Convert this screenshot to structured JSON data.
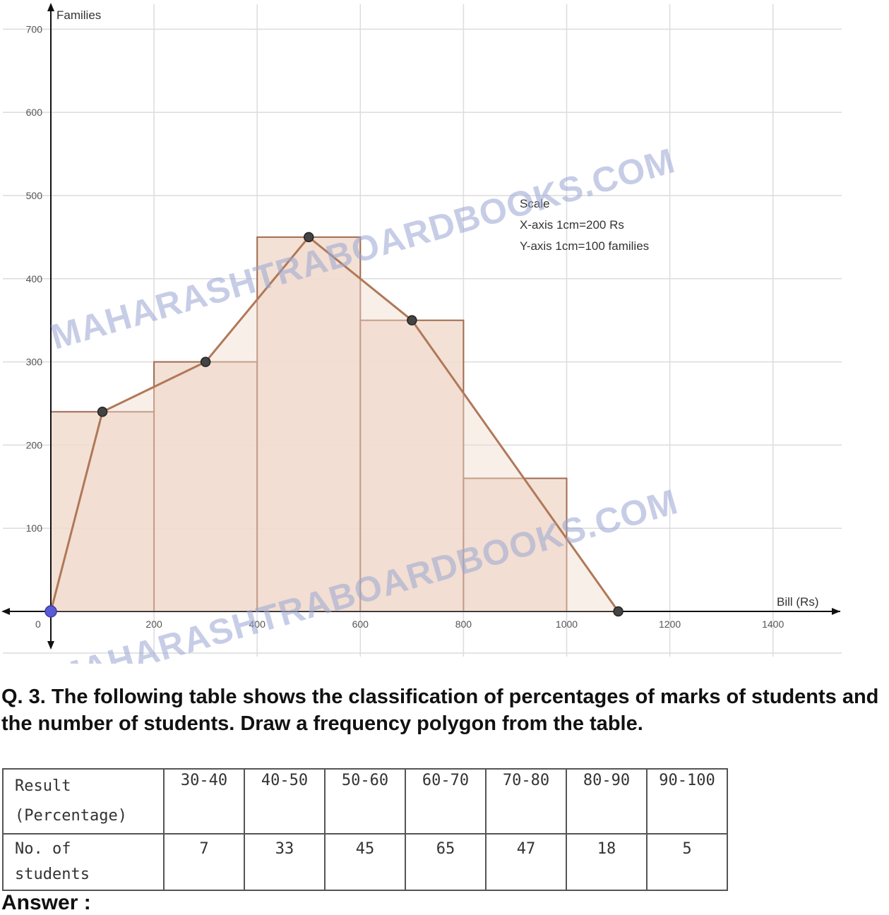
{
  "chart_data": {
    "type": "histogram_with_frequency_polygon",
    "ylabel": "Families",
    "xlabel": "Bill (Rs)",
    "xlim": [
      0,
      1500
    ],
    "ylim": [
      0,
      700
    ],
    "x_ticks": [
      0,
      200,
      400,
      600,
      800,
      1000,
      1200,
      1400
    ],
    "y_ticks": [
      100,
      200,
      300,
      400,
      500,
      600,
      700
    ],
    "grid": true,
    "bars": [
      {
        "from": 0,
        "to": 200,
        "value": 240
      },
      {
        "from": 200,
        "to": 400,
        "value": 300
      },
      {
        "from": 400,
        "to": 600,
        "value": 450
      },
      {
        "from": 600,
        "to": 800,
        "value": 350
      },
      {
        "from": 800,
        "to": 1000,
        "value": 160
      }
    ],
    "polygon": [
      {
        "x": 0,
        "y": 0
      },
      {
        "x": 100,
        "y": 240
      },
      {
        "x": 300,
        "y": 300
      },
      {
        "x": 500,
        "y": 450
      },
      {
        "x": 700,
        "y": 350
      },
      {
        "x": 1100,
        "y": 0
      }
    ],
    "scale_note": {
      "title": "Scale",
      "x_scale": "X-axis 1cm=200 Rs",
      "y_scale": "Y-axis 1cm=100 families"
    },
    "colors": {
      "bar_fill": "#f1dccf",
      "bar_stroke": "#a06a50",
      "polygon": "#b07858",
      "point": "#444444",
      "origin_point": "#5a5ad6",
      "grid": "#dcdcdc",
      "watermark": "#9aa6d2"
    }
  },
  "watermark": {
    "text1": "MAHARASHTRABOARDBOOKS.COM",
    "text2": "MAHARASHTRABOARDBOOKS.COM"
  },
  "question": {
    "text": "Q. 3. The following table shows the classification of percentages of marks of students and the number of students. Draw a frequency polygon from the table."
  },
  "table": {
    "header_line1": "Result",
    "header_line2": "(Percentage)",
    "classes": [
      "30-40",
      "40-50",
      "50-60",
      "60-70",
      "70-80",
      "80-90",
      "90-100"
    ],
    "row_label": "No. of students",
    "counts": [
      "7",
      "33",
      "45",
      "65",
      "47",
      "18",
      "5"
    ]
  },
  "answer_label": "Answer :"
}
